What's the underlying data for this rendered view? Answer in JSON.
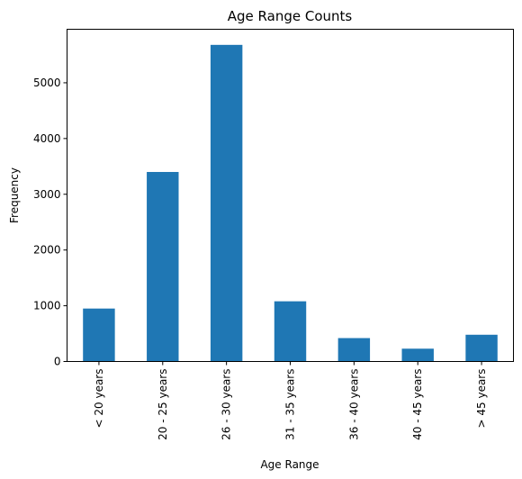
{
  "chart_data": {
    "type": "bar",
    "title": "Age Range Counts",
    "xlabel": "Age Range",
    "ylabel": "Frequency",
    "categories": [
      "< 20 years",
      "20 - 25 years",
      "26 - 30 years",
      "31 - 35 years",
      "36 - 40 years",
      "40 - 45 years",
      "> 45 years"
    ],
    "values": [
      950,
      3400,
      5680,
      1080,
      420,
      230,
      480
    ],
    "ylim": [
      0,
      5960
    ],
    "yticks": [
      0,
      1000,
      2000,
      3000,
      4000,
      5000
    ],
    "grid": false,
    "legend": "none",
    "bar_color": "#1f77b4"
  }
}
